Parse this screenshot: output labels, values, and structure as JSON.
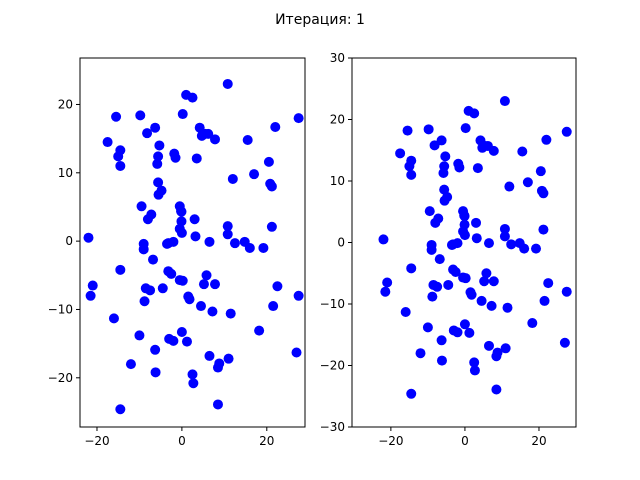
{
  "chart_data": {
    "title": "Итерация: 1",
    "point_color": "#0000ff",
    "points": [
      [
        -22,
        0.5
      ],
      [
        -21,
        -6.5
      ],
      [
        -21.5,
        -8
      ],
      [
        -17.5,
        14.5
      ],
      [
        -16,
        -11.3
      ],
      [
        -15.5,
        18.2
      ],
      [
        -15,
        12.4
      ],
      [
        -14.5,
        13.3
      ],
      [
        -14.5,
        11
      ],
      [
        -14.5,
        -4.2
      ],
      [
        -14.5,
        -24.6
      ],
      [
        -12,
        -18
      ],
      [
        -10,
        -13.8
      ],
      [
        -9.8,
        18.4
      ],
      [
        -9.5,
        5.1
      ],
      [
        -9,
        -0.4
      ],
      [
        -9,
        -1.2
      ],
      [
        -8.5,
        -6.9
      ],
      [
        -8.8,
        -8.8
      ],
      [
        -8.2,
        15.8
      ],
      [
        -8,
        3.2
      ],
      [
        -7.2,
        3.9
      ],
      [
        -7.5,
        -7.2
      ],
      [
        -6.8,
        -2.7
      ],
      [
        -6.3,
        16.6
      ],
      [
        -6.3,
        -15.9
      ],
      [
        -6.2,
        -19.2
      ],
      [
        -5.8,
        11.3
      ],
      [
        -5.6,
        12.4
      ],
      [
        -5.6,
        8.6
      ],
      [
        -5.5,
        6.8
      ],
      [
        -5.3,
        14
      ],
      [
        -4.8,
        7.4
      ],
      [
        -4.5,
        -6.9
      ],
      [
        -3.5,
        -0.4
      ],
      [
        -3.2,
        -0.3
      ],
      [
        -3.2,
        -4.4
      ],
      [
        -3,
        -14.3
      ],
      [
        -2.5,
        -4.8
      ],
      [
        -2,
        -0.1
      ],
      [
        -2,
        -14.6
      ],
      [
        -1.8,
        12.8
      ],
      [
        -1.5,
        12.2
      ],
      [
        -0.5,
        5.1
      ],
      [
        -0.5,
        1.8
      ],
      [
        -0.5,
        -5.7
      ],
      [
        -0.2,
        4.4
      ],
      [
        -0.1,
        4.3
      ],
      [
        -0.1,
        2.9
      ],
      [
        0,
        1.2
      ],
      [
        0,
        -13.3
      ],
      [
        0.2,
        18.6
      ],
      [
        0.2,
        -5.8
      ],
      [
        1,
        21.4
      ],
      [
        1.2,
        -14.7
      ],
      [
        1.5,
        -8.1
      ],
      [
        1.8,
        -8.5
      ],
      [
        2.5,
        21
      ],
      [
        2.5,
        -19.5
      ],
      [
        2.7,
        -20.8
      ],
      [
        3,
        3.2
      ],
      [
        3.2,
        0.7
      ],
      [
        3.5,
        12.1
      ],
      [
        4.2,
        16.6
      ],
      [
        4.5,
        -9.5
      ],
      [
        4.7,
        15.4
      ],
      [
        5.2,
        -6.3
      ],
      [
        5.5,
        15.7
      ],
      [
        5.8,
        -5
      ],
      [
        6.2,
        15.7
      ],
      [
        6.5,
        -16.8
      ],
      [
        6.5,
        -0.1
      ],
      [
        7.2,
        -10.3
      ],
      [
        7.8,
        -6.3
      ],
      [
        7.8,
        14.9
      ],
      [
        8.5,
        -18.5
      ],
      [
        8.5,
        -23.9
      ],
      [
        8.8,
        -17.9
      ],
      [
        10.8,
        2.2
      ],
      [
        10.8,
        1
      ],
      [
        10.8,
        23
      ],
      [
        11,
        -17.2
      ],
      [
        11.5,
        -10.6
      ],
      [
        12,
        9.1
      ],
      [
        12.5,
        -0.3
      ],
      [
        14.8,
        -0.1
      ],
      [
        15.5,
        14.8
      ],
      [
        16,
        -1
      ],
      [
        17,
        9.8
      ],
      [
        18.2,
        -13.1
      ],
      [
        19.2,
        -1
      ],
      [
        20.5,
        11.6
      ],
      [
        20.8,
        8.4
      ],
      [
        21.2,
        2.1
      ],
      [
        21.2,
        8
      ],
      [
        21.5,
        -9.5
      ],
      [
        22,
        16.7
      ],
      [
        22.5,
        -6.6
      ],
      [
        27,
        -16.3
      ],
      [
        27.5,
        18
      ],
      [
        27.5,
        -8
      ]
    ],
    "subplots": [
      {
        "type": "scatter",
        "xlim": [
          -24,
          29
        ],
        "ylim": [
          -27.2,
          26.8
        ],
        "xticks": [
          -20,
          0,
          20
        ],
        "xtick_labels": [
          "−20",
          "0",
          "20"
        ],
        "yticks": [
          -20,
          -10,
          0,
          10,
          20
        ],
        "ytick_labels": [
          "−20",
          "−10",
          "0",
          "10",
          "20"
        ],
        "xlabel": "",
        "ylabel": ""
      },
      {
        "type": "scatter",
        "xlim": [
          -30.5,
          30
        ],
        "ylim": [
          -30,
          30
        ],
        "xticks": [
          -20,
          0,
          20
        ],
        "xtick_labels": [
          "−20",
          "0",
          "20"
        ],
        "yticks": [
          -30,
          -20,
          -10,
          0,
          10,
          20,
          30
        ],
        "ytick_labels": [
          "−30",
          "−20",
          "−10",
          "0",
          "10",
          "20",
          "30"
        ],
        "xlabel": "",
        "ylabel": ""
      }
    ]
  }
}
